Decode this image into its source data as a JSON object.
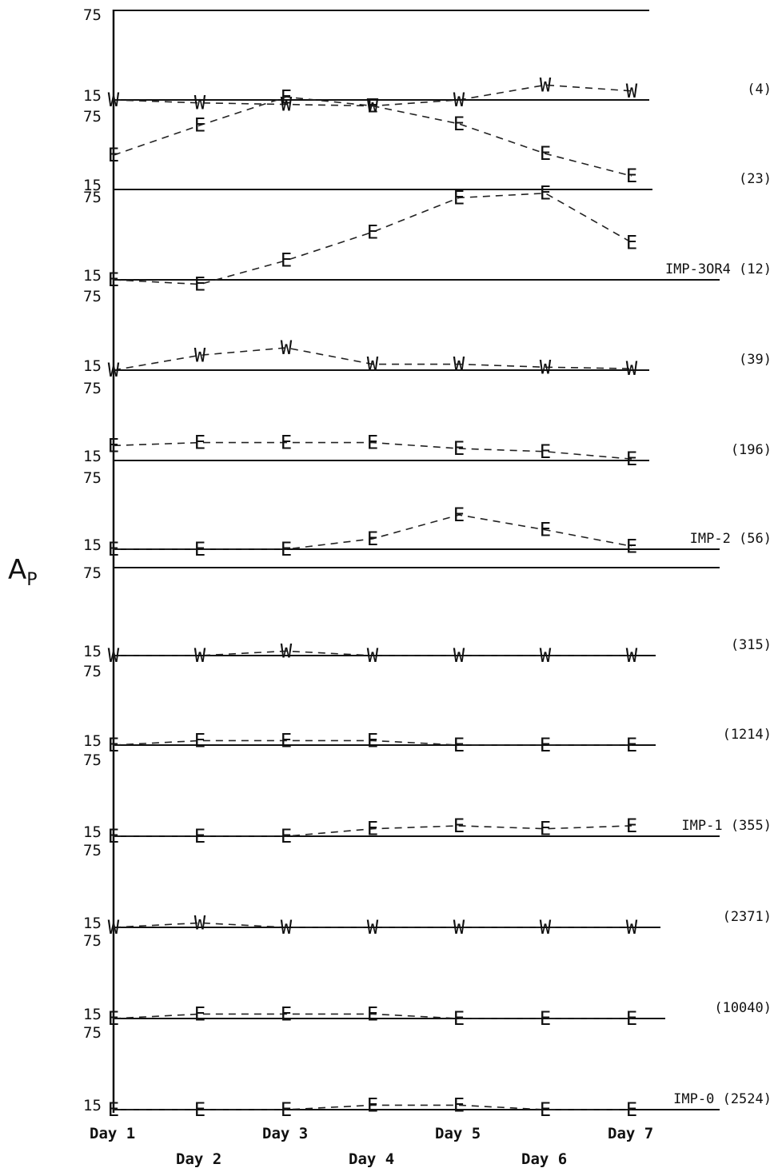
{
  "chart_data": {
    "type": "line",
    "ylabel_main": "A",
    "ylabel_sub": "P",
    "tick_top": "75",
    "tick_bottom": "15",
    "categories": [
      "Day 1",
      "Day 2",
      "Day 3",
      "Day 4",
      "Day 5",
      "Day 6",
      "Day 7"
    ],
    "panels": [
      {
        "label": "(4)",
        "marker": "W",
        "values": [
          15,
          13,
          12,
          11,
          15,
          25,
          21
        ]
      },
      {
        "label": "(23)",
        "marker": "E",
        "values": [
          38,
          58,
          77,
          71,
          59,
          39,
          24
        ]
      },
      {
        "label": "IMP-3OR4 (12)",
        "marker": "E",
        "values": [
          15,
          12,
          28,
          47,
          70,
          73,
          40
        ]
      },
      {
        "label": "(39)",
        "marker": "W",
        "values": [
          15,
          25,
          30,
          19,
          19,
          17,
          16
        ]
      },
      {
        "label": "(196)",
        "marker": "E",
        "values": [
          25,
          27,
          27,
          27,
          23,
          21,
          16
        ]
      },
      {
        "label": "IMP-2 (56)",
        "marker": "E",
        "values": [
          15,
          15,
          15,
          22,
          38,
          28,
          17
        ]
      },
      {
        "label": "(315)",
        "marker": "W",
        "values": [
          15,
          15,
          18,
          15,
          15,
          15,
          15
        ]
      },
      {
        "label": "(1214)",
        "marker": "E",
        "values": [
          15,
          18,
          18,
          18,
          15,
          15,
          15
        ]
      },
      {
        "label": "IMP-1 (355)",
        "marker": "E",
        "values": [
          15,
          15,
          15,
          20,
          22,
          20,
          22
        ]
      },
      {
        "label": "(2371)",
        "marker": "W",
        "values": [
          15,
          18,
          15,
          15,
          15,
          15,
          15
        ]
      },
      {
        "label": "(10040)",
        "marker": "E",
        "values": [
          15,
          18,
          18,
          18,
          15,
          15,
          15
        ]
      },
      {
        "label": "IMP-0 (2524)",
        "marker": "E",
        "values": [
          15,
          15,
          15,
          18,
          18,
          15,
          15
        ]
      }
    ]
  }
}
